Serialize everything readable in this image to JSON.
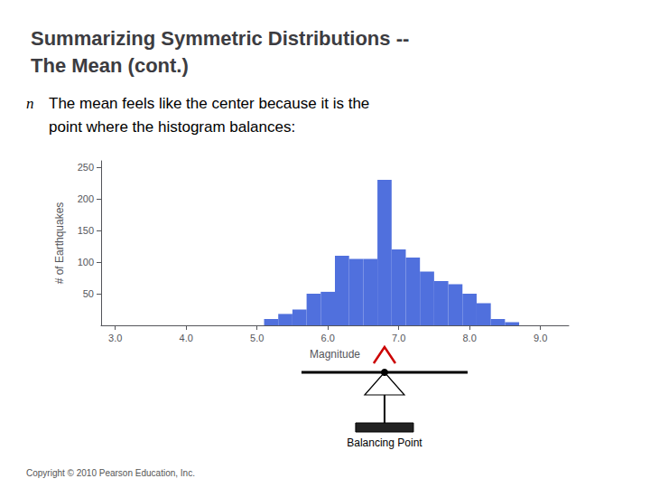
{
  "chart_data": {
    "type": "bar",
    "title": "Summarizing Symmetric Distributions --",
    "subtitle": "The Mean (cont.)",
    "x": [
      5.2,
      5.4,
      5.6,
      5.8,
      6.0,
      6.2,
      6.4,
      6.6,
      6.8,
      7.0,
      7.2,
      7.4,
      7.6,
      7.8,
      8.0,
      8.2,
      8.4,
      8.6
    ],
    "values": [
      10,
      18,
      25,
      50,
      53,
      110,
      105,
      105,
      230,
      120,
      107,
      85,
      70,
      65,
      50,
      35,
      10,
      5
    ],
    "xlabel": "Magnitude",
    "ylabel": "# of Earthquakes",
    "xlim": [
      2.8,
      9.4
    ],
    "xticks": [
      {
        "value": 3.0,
        "label": "3.0"
      },
      {
        "value": 4.0,
        "label": "4.0"
      },
      {
        "value": 5.0,
        "label": "5.0"
      },
      {
        "value": 6.0,
        "label": "6.0"
      },
      {
        "value": 7.0,
        "label": "7.0"
      },
      {
        "value": 8.0,
        "label": "8.0"
      },
      {
        "value": 9.0,
        "label": "9.0"
      }
    ],
    "ylim": [
      0,
      260
    ],
    "yticks": [
      50,
      100,
      150,
      200,
      250
    ],
    "grid": false,
    "annotations": [
      {
        "text": "n"
      },
      {
        "text": [
          {
            "text": "The "
          },
          {
            "text": "mean",
            "color": "#cc6600"
          },
          {
            "text": " feels like the center because it is the"
          }
        ]
      },
      {
        "text": "point where the histogram balances:"
      },
      {
        "text": "Balancing Point",
        "x": 6.8,
        "color": "#cc0000"
      },
      {
        "text": "Copyright © 2010 Pearson Education, Inc."
      }
    ]
  }
}
